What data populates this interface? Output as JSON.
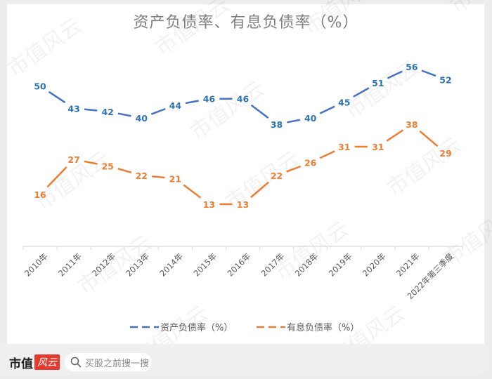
{
  "chart_data": {
    "type": "line",
    "title": "资产负债率、有息负债率（%）",
    "categories": [
      "2010年",
      "2011年",
      "2012年",
      "2013年",
      "2014年",
      "2015年",
      "2016年",
      "2017年",
      "2018年",
      "2019年",
      "2020年",
      "2021年",
      "2022年第三季度"
    ],
    "series": [
      {
        "name": "资产负债率（%）",
        "color": "#4472c4",
        "label_color": "#2e75b6",
        "dash": true,
        "values": [
          50,
          43,
          42,
          40,
          44,
          46,
          46,
          38,
          40,
          45,
          51,
          56,
          52
        ]
      },
      {
        "name": "有息负债率（%）",
        "color": "#ed7d31",
        "label_color": "#ed7d31",
        "dash": true,
        "values": [
          16,
          27,
          25,
          22,
          21,
          13,
          13,
          22,
          26,
          31,
          31,
          38,
          29
        ]
      }
    ],
    "xlabel": "",
    "ylabel": "",
    "ylim": [
      0,
      60
    ],
    "grid": false,
    "legend_position": "bottom",
    "data_labels": true
  },
  "legend": {
    "item1": "资产负债率（%）",
    "item2": "有息负债率（%）"
  },
  "watermark": "市值风云",
  "footer": {
    "logo_text": "市值",
    "logo_badge": "风云",
    "search_placeholder": "买股之前搜一搜"
  }
}
